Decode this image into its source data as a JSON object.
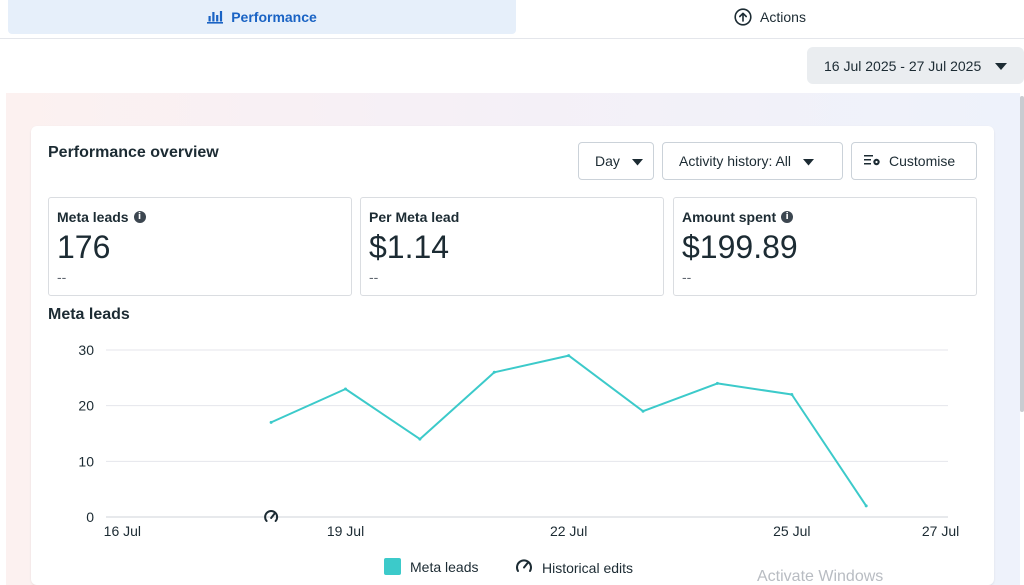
{
  "tabs": [
    {
      "label": "Performance",
      "icon": "bar-chart-icon",
      "active": true
    },
    {
      "label": "Actions",
      "icon": "arrow-up-circle-icon",
      "active": false
    }
  ],
  "date_range": {
    "label": "16 Jul 2025 - 27 Jul 2025"
  },
  "overview": {
    "title": "Performance overview",
    "controls": {
      "day": "Day",
      "activity_history": "Activity history: All",
      "customise": "Customise"
    },
    "metrics": [
      {
        "label": "Meta leads",
        "value": "176",
        "comparison": "--",
        "has_info": true
      },
      {
        "label": "Per Meta lead",
        "value": "$1.14",
        "comparison": "--",
        "has_info": false
      },
      {
        "label": "Amount spent",
        "value": "$199.89",
        "comparison": "--",
        "has_info": true
      }
    ]
  },
  "chart_data": {
    "type": "line",
    "title": "Meta leads",
    "xlabel": "",
    "ylabel": "",
    "x_ticks": [
      "16 Jul",
      "19 Jul",
      "22 Jul",
      "25 Jul",
      "27 Jul"
    ],
    "y_ticks": [
      0,
      10,
      20,
      30
    ],
    "ylim": [
      0,
      30
    ],
    "grid": true,
    "legend_position": "bottom",
    "series": [
      {
        "name": "Meta leads",
        "color": "#3ccaca",
        "x": [
          "18 Jul",
          "19 Jul",
          "20 Jul",
          "21 Jul",
          "22 Jul",
          "23 Jul",
          "24 Jul",
          "25 Jul",
          "26 Jul"
        ],
        "values": [
          17,
          23,
          14,
          26,
          29,
          19,
          24,
          22,
          2
        ]
      }
    ],
    "annotations": [
      {
        "type": "historical-edit",
        "x": "18 Jul",
        "icon": "gauge-edit-icon"
      }
    ],
    "legend": [
      {
        "label": "Meta leads",
        "swatch": "#3ccaca"
      },
      {
        "label": "Historical edits",
        "icon": "gauge-edit-icon"
      }
    ]
  },
  "watermark": "Activate Windows"
}
